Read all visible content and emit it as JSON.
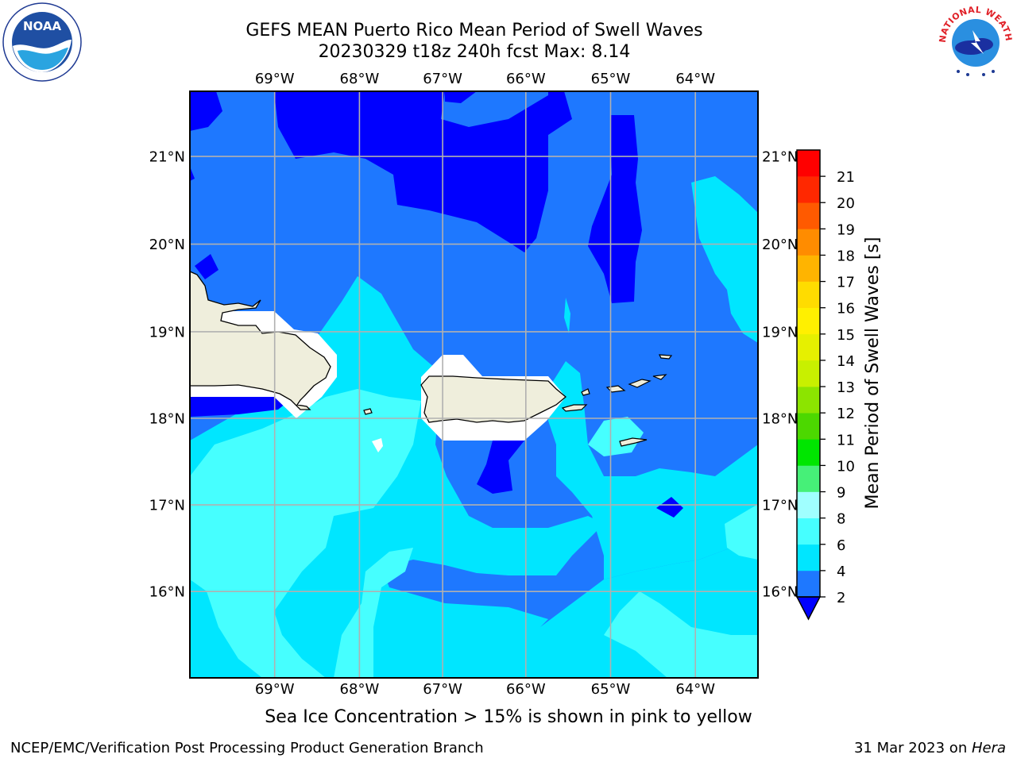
{
  "title": {
    "line1": "GEFS MEAN Puerto Rico Mean Period of Swell Waves",
    "line2": "20230329 t18z 240h fcst   Max: 8.14"
  },
  "map": {
    "lon_labels": [
      "69°W",
      "68°W",
      "67°W",
      "66°W",
      "65°W",
      "64°W"
    ],
    "lat_labels": [
      "21°N",
      "20°N",
      "19°N",
      "18°N",
      "17°N",
      "16°N"
    ],
    "extent": {
      "lon_min": -70.0,
      "lon_max": -63.3,
      "lat_min": 15.0,
      "lat_max": 21.75
    },
    "land_color": "#efeedc",
    "grid_color": "#b0b0b0"
  },
  "colorbar": {
    "label": "Mean Period of Swell Waves [s]",
    "ticks": [
      "2",
      "4",
      "6",
      "8",
      "9",
      "10",
      "11",
      "12",
      "13",
      "14",
      "15",
      "16",
      "17",
      "18",
      "19",
      "20",
      "21"
    ],
    "colors": [
      "#1e78ff",
      "#00e6ff",
      "#46ffff",
      "#a0ffff",
      "#46f078",
      "#00e600",
      "#4cd800",
      "#8ce400",
      "#c8f000",
      "#e6f000",
      "#fff000",
      "#ffdc00",
      "#ffb400",
      "#ff8c00",
      "#ff5a00",
      "#ff2800",
      "#ff0000"
    ],
    "under_color": "#0000ff"
  },
  "subtitle": "Sea Ice Concentration > 15% is shown in pink to yellow",
  "footer": {
    "left": "NCEP/EMC/Verification Post Processing Product Generation Branch",
    "right_date": "31 Mar 2023 on ",
    "right_machine": "Hera"
  },
  "logos": {
    "noaa_text": "NOAA",
    "nws_text": "NATIONAL WEATHER SERVICE"
  }
}
